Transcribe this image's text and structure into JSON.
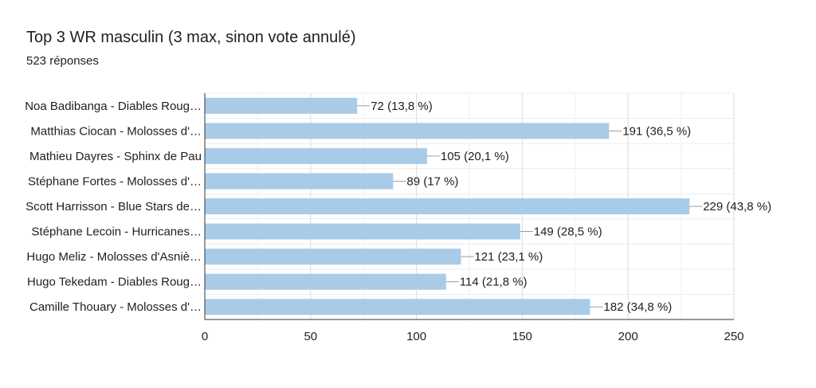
{
  "chart_data": {
    "type": "bar",
    "orientation": "horizontal",
    "title": "Top 3 WR masculin (3 max, sinon vote annulé)",
    "subtitle": "523 réponses",
    "categories": [
      "Noa Badibanga - Diables Roug…",
      "Matthias Ciocan - Molosses d'…",
      "Mathieu Dayres - Sphinx de Pau",
      "Stéphane Fortes - Molosses d'…",
      "Scott Harrisson - Blue Stars de…",
      "Stéphane Lecoin - Hurricanes…",
      "Hugo Meliz - Molosses d'Asniè…",
      "Hugo Tekedam - Diables Roug…",
      "Camille Thouary - Molosses d'…"
    ],
    "values": [
      72,
      191,
      105,
      89,
      229,
      149,
      121,
      114,
      182
    ],
    "data_labels": [
      "72 (13,8 %)",
      "191 (36,5 %)",
      "105 (20,1 %)",
      "89 (17 %)",
      "229 (43,8 %)",
      "149 (28,5 %)",
      "121 (23,1 %)",
      "114 (21,8 %)",
      "182 (34,8 %)"
    ],
    "xticks": [
      "0",
      "50",
      "100",
      "150",
      "200",
      "250"
    ],
    "xtick_values": [
      0,
      50,
      100,
      150,
      200,
      250
    ],
    "xlim": [
      0,
      250
    ],
    "grid": true,
    "bar_color": "#a8cbe8"
  }
}
